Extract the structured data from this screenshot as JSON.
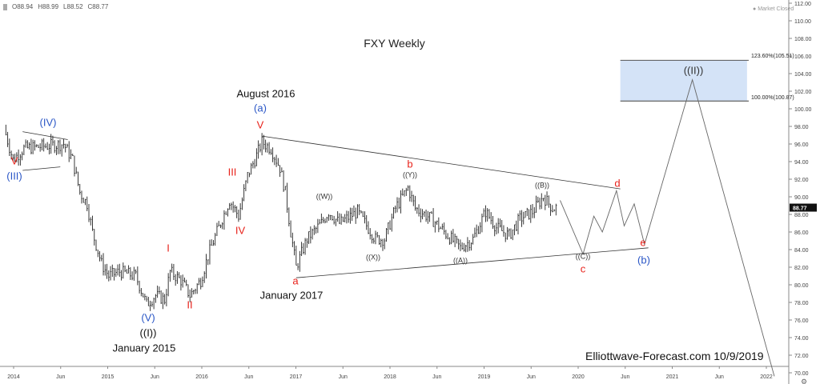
{
  "header": {
    "ohlc": [
      "O88.94",
      "H88.99",
      "L88.52",
      "C88.77"
    ],
    "market_status": "Market Closed"
  },
  "chart_data": {
    "type": "line",
    "title": "FXY Weekly",
    "watermark": "Elliottwave-Forecast.com 10/9/2019",
    "ylim": [
      70,
      112
    ],
    "y_ticks": [
      "112.00",
      "110.00",
      "108.00",
      "106.00",
      "104.00",
      "102.00",
      "100.00",
      "98.00",
      "96.00",
      "94.00",
      "92.00",
      "90.00",
      "88.00",
      "86.00",
      "84.00",
      "82.00",
      "80.00",
      "78.00",
      "76.00",
      "74.00",
      "72.00",
      "70.00"
    ],
    "x_ticks": [
      "2014",
      "Jun",
      "2015",
      "Jun",
      "2016",
      "Jun",
      "2017",
      "Jun",
      "2018",
      "Jun",
      "2019",
      "Jun",
      "2020",
      "Jun",
      "2021",
      "Jun",
      "2022"
    ],
    "last_price": "88.77",
    "price_series": [
      [
        "2013-11-25",
        97.8
      ],
      [
        "2013-12-30",
        94.2
      ],
      [
        "2014-02-10",
        95.5
      ],
      [
        "2014-04-14",
        95.7
      ],
      [
        "2014-07-14",
        96.0
      ],
      [
        "2014-08-18",
        94.2
      ],
      [
        "2014-09-15",
        90.5
      ],
      [
        "2014-10-13",
        89.2
      ],
      [
        "2014-11-03",
        86.0
      ],
      [
        "2014-12-08",
        82.4
      ],
      [
        "2015-01-05",
        81.0
      ],
      [
        "2015-02-16",
        81.5
      ],
      [
        "2015-04-20",
        81.0
      ],
      [
        "2015-06-01",
        77.8
      ],
      [
        "2015-07-06",
        78.8
      ],
      [
        "2015-08-10",
        78.3
      ],
      [
        "2015-08-31",
        81.5
      ],
      [
        "2015-10-12",
        80.5
      ],
      [
        "2015-11-16",
        78.8
      ],
      [
        "2015-12-28",
        80.5
      ],
      [
        "2016-01-25",
        83.3
      ],
      [
        "2016-02-29",
        86.0
      ],
      [
        "2016-04-18",
        89.6
      ],
      [
        "2016-05-23",
        87.8
      ],
      [
        "2016-06-27",
        92.4
      ],
      [
        "2016-07-25",
        94.2
      ],
      [
        "2016-08-22",
        96.2
      ],
      [
        "2016-09-26",
        95.5
      ],
      [
        "2016-10-31",
        93.3
      ],
      [
        "2016-11-21",
        90.5
      ],
      [
        "2016-12-12",
        86.0
      ],
      [
        "2017-01-02",
        82.0
      ],
      [
        "2017-02-13",
        85.2
      ],
      [
        "2017-04-10",
        87.0
      ],
      [
        "2017-05-08",
        88.3
      ],
      [
        "2017-06-19",
        87.0
      ],
      [
        "2017-08-28",
        88.3
      ],
      [
        "2017-11-06",
        85.2
      ],
      [
        "2017-12-11",
        85.2
      ],
      [
        "2018-01-22",
        88.7
      ],
      [
        "2018-03-12",
        91.0
      ],
      [
        "2018-04-09",
        88.7
      ],
      [
        "2018-06-11",
        87.5
      ],
      [
        "2018-08-13",
        85.6
      ],
      [
        "2018-10-01",
        84.2
      ],
      [
        "2018-11-19",
        85.2
      ],
      [
        "2019-01-07",
        88.3
      ],
      [
        "2019-02-18",
        86.5
      ],
      [
        "2019-04-08",
        85.6
      ],
      [
        "2019-05-20",
        87.5
      ],
      [
        "2019-07-08",
        88.3
      ],
      [
        "2019-08-19",
        90.0
      ],
      [
        "2019-09-23",
        88.7
      ],
      [
        "2019-10-07",
        88.77
      ]
    ],
    "projection_path": [
      [
        "2019-10-23",
        89.6
      ],
      [
        "2020-01-20",
        83.5
      ],
      [
        "2020-03-02",
        87.8
      ],
      [
        "2020-04-04",
        86.0
      ],
      [
        "2020-05-29",
        90.7
      ],
      [
        "2020-06-28",
        86.7
      ],
      [
        "2020-08-06",
        89.2
      ],
      [
        "2020-09-15",
        84.6
      ],
      [
        "2021-03-20",
        103.3
      ],
      [
        "2022-02-01",
        69.6
      ]
    ],
    "trendlines": [
      {
        "from": [
          "2016-08-22",
          96.9
        ],
        "to": [
          "2020-06-13",
          90.9
        ]
      },
      {
        "from": [
          "2017-01-02",
          80.8
        ],
        "to": [
          "2020-09-30",
          84.2
        ]
      },
      {
        "from": [
          "2014-02-05",
          97.4
        ],
        "to": [
          "2014-07-30",
          96.5
        ]
      },
      {
        "from": [
          "2014-02-05",
          93.0
        ],
        "to": [
          "2014-07-01",
          93.4
        ]
      }
    ],
    "target_zone": {
      "from_date": "2020-06-13",
      "to_date": "2021-10-18",
      "low": 100.87,
      "high": 105.51,
      "color": "#d4e3f7",
      "high_label": "123.60%(105.51)",
      "low_label": "100.00%(100.87)"
    },
    "annotations": [
      {
        "id": "v1",
        "text": "V",
        "color": "#e8221b"
      },
      {
        "id": "iii_big",
        "text": "(III)",
        "color": "#2a56c6"
      },
      {
        "id": "iv_big",
        "text": "(IV)",
        "color": "#2a56c6"
      },
      {
        "id": "aug2016",
        "text": "August 2016",
        "color": "#111111"
      },
      {
        "id": "a_blue",
        "text": "(a)",
        "color": "#2a56c6"
      },
      {
        "id": "v2",
        "text": "V",
        "color": "#e8221b"
      },
      {
        "id": "iii",
        "text": "III",
        "color": "#e8221b"
      },
      {
        "id": "iv",
        "text": "IV",
        "color": "#e8221b"
      },
      {
        "id": "i",
        "text": "I",
        "color": "#e8221b"
      },
      {
        "id": "ii",
        "text": "II",
        "color": "#e8221b"
      },
      {
        "id": "v_big",
        "text": "(V)",
        "color": "#2a56c6"
      },
      {
        "id": "i_cycle",
        "text": "((I))",
        "color": "#111111"
      },
      {
        "id": "jan2015",
        "text": "January 2015",
        "color": "#111111"
      },
      {
        "id": "a_red",
        "text": "a",
        "color": "#e8221b"
      },
      {
        "id": "jan2017",
        "text": "January 2017",
        "color": "#111111"
      },
      {
        "id": "w",
        "text": "((W))",
        "color": "#333333"
      },
      {
        "id": "b_red",
        "text": "b",
        "color": "#e8221b"
      },
      {
        "id": "y",
        "text": "((Y))",
        "color": "#333333"
      },
      {
        "id": "x",
        "text": "((X))",
        "color": "#333333"
      },
      {
        "id": "a_dbl",
        "text": "((A))",
        "color": "#333333"
      },
      {
        "id": "b_dbl",
        "text": "((B))",
        "color": "#333333"
      },
      {
        "id": "d_red",
        "text": "d",
        "color": "#e8221b"
      },
      {
        "id": "c_dbl",
        "text": "((C))",
        "color": "#333333"
      },
      {
        "id": "c_red",
        "text": "c",
        "color": "#e8221b"
      },
      {
        "id": "e_red",
        "text": "e",
        "color": "#e8221b"
      },
      {
        "id": "b_blue",
        "text": "(b)",
        "color": "#2a56c6"
      },
      {
        "id": "ii_cycle",
        "text": "((II))",
        "color": "#333333"
      }
    ]
  }
}
